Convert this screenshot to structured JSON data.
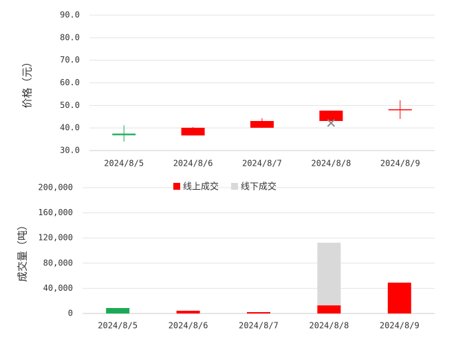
{
  "chart_data": [
    {
      "type": "candlestick",
      "y_label": "价格（元）",
      "categories": [
        "2024/8/5",
        "2024/8/6",
        "2024/8/7",
        "2024/8/8",
        "2024/8/9"
      ],
      "open": [
        37.5,
        36.7,
        40.1,
        43.1,
        48.0
      ],
      "close": [
        36.8,
        40.1,
        43.1,
        47.7,
        48.3
      ],
      "high": [
        41.2,
        40.4,
        44.3,
        47.7,
        52.3
      ],
      "low": [
        34.0,
        36.7,
        40.1,
        43.1,
        44.0
      ],
      "markers": [
        null,
        null,
        null,
        42.2,
        null
      ],
      "up_color": "#ff0000",
      "down_color": "#1aaa55",
      "marker_color": "#888888",
      "ylim": [
        30,
        90
      ],
      "yticks": [
        {
          "value": 30,
          "label": "30.0"
        },
        {
          "value": 40,
          "label": "40.0"
        },
        {
          "value": 50,
          "label": "50.0"
        },
        {
          "value": 60,
          "label": "60.0"
        },
        {
          "value": 70,
          "label": "70.0"
        },
        {
          "value": 80,
          "label": "80.0"
        },
        {
          "value": 90,
          "label": "90.0"
        }
      ],
      "grid": true
    },
    {
      "type": "stacked_bar",
      "y_label": "成交量（吨）",
      "categories": [
        "2024/8/5",
        "2024/8/6",
        "2024/8/7",
        "2024/8/8",
        "2024/8/9"
      ],
      "series": [
        {
          "name": "线上成交",
          "color": "#ff0000",
          "point_colors": [
            "#1aaa55",
            "#ff0000",
            "#ff0000",
            "#ff0000",
            "#ff0000"
          ],
          "values": [
            8700,
            4400,
            2200,
            13000,
            49000
          ]
        },
        {
          "name": "线下成交",
          "color": "#d9d9d9",
          "values": [
            0,
            0,
            0,
            99500,
            0
          ]
        }
      ],
      "ylim": [
        0,
        200000
      ],
      "yticks": [
        0,
        {
          "value": 40000,
          "label": "40,000"
        },
        {
          "value": 80000,
          "label": "80,000"
        },
        {
          "value": 120000,
          "label": "120,000"
        },
        {
          "value": 160000,
          "label": "160,000"
        },
        {
          "value": 200000,
          "label": "200,000"
        }
      ],
      "grid": true
    }
  ]
}
